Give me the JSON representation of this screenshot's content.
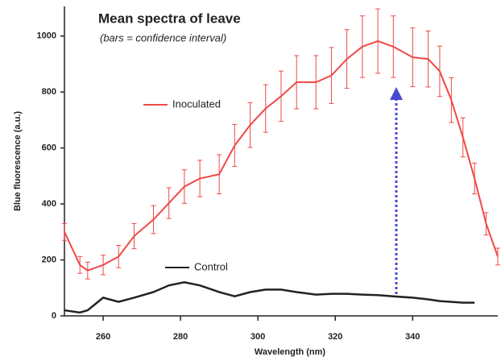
{
  "chart_data": {
    "type": "line",
    "title": "Mean spectra of leave",
    "subtitle": "(bars = confidence interval)",
    "x_label": "Wavelength (nm)",
    "y_label": "Blue fluorescence (a.u.)",
    "x": [
      250,
      254,
      256,
      260,
      264,
      268,
      273,
      277,
      281,
      285,
      290,
      294,
      298,
      302,
      306,
      310,
      315,
      319,
      323,
      327,
      331,
      335,
      340,
      344,
      347,
      350,
      353,
      356,
      359,
      362
    ],
    "series": [
      {
        "name": "Inoculated",
        "color": "#f04848",
        "values": [
          300,
          182,
          162,
          182,
          212,
          285,
          344,
          403,
          462,
          491,
          506,
          609,
          682,
          741,
          785,
          835,
          835,
          859,
          918,
          962,
          982,
          962,
          924,
          918,
          874,
          771,
          638,
          491,
          329,
          212
        ],
        "errors": [
          30,
          30,
          30,
          35,
          40,
          45,
          50,
          55,
          60,
          65,
          70,
          75,
          80,
          85,
          90,
          95,
          95,
          100,
          105,
          110,
          115,
          110,
          105,
          100,
          90,
          80,
          70,
          55,
          40,
          30
        ]
      },
      {
        "name": "Control",
        "color": "#222222",
        "values": [
          20,
          12,
          20,
          65,
          50,
          65,
          85,
          109,
          120,
          109,
          85,
          70,
          85,
          94,
          94,
          85,
          76,
          79,
          79,
          76,
          74,
          70,
          65,
          59,
          53,
          50,
          47,
          47,
          null,
          null
        ]
      }
    ],
    "xlim": [
      250,
      362
    ],
    "xticks": [
      260,
      280,
      300,
      320,
      340
    ],
    "ylim": [
      0,
      1100
    ],
    "yticks": [
      0,
      200,
      400,
      600,
      800,
      1000
    ]
  }
}
